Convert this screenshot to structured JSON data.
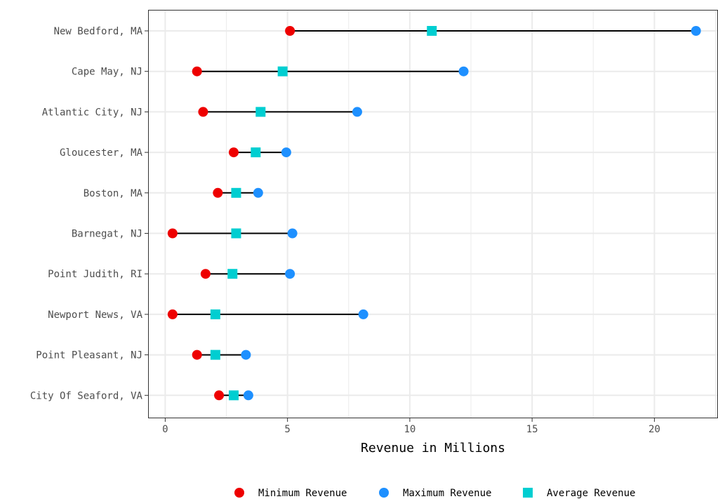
{
  "chart_data": {
    "type": "dumbbell",
    "title": "",
    "xlabel": "Revenue in Millions",
    "ylabel": "",
    "xlim": [
      -0.7,
      22.6
    ],
    "x_ticks": [
      0,
      5,
      10,
      15,
      20
    ],
    "grid": true,
    "legend_position": "bottom",
    "colors": {
      "min": "#ee0000",
      "max": "#1e90ff",
      "avg": "#00ced1",
      "segment": "#000000",
      "grid": "#ebebeb",
      "panel_border": "#333333"
    },
    "categories": [
      "New Bedford, MA",
      "Cape May, NJ",
      "Atlantic City, NJ",
      "Gloucester, MA",
      "Boston, MA",
      "Barnegat, NJ",
      "Point Judith, RI",
      "Newport News, VA",
      "Point Pleasant, NJ",
      "City Of Seaford, VA"
    ],
    "series": [
      {
        "name": "Minimum Revenue",
        "marker": "circle",
        "values": [
          5.1,
          1.3,
          1.55,
          2.8,
          2.15,
          0.3,
          1.65,
          0.3,
          1.3,
          2.2
        ]
      },
      {
        "name": "Maximum Revenue",
        "marker": "circle",
        "values": [
          21.7,
          12.2,
          7.85,
          4.95,
          3.8,
          5.2,
          5.1,
          8.1,
          3.3,
          3.4
        ]
      },
      {
        "name": "Average Revenue",
        "marker": "square",
        "values": [
          10.9,
          4.8,
          3.9,
          3.7,
          2.9,
          2.9,
          2.75,
          2.05,
          2.05,
          2.8
        ]
      }
    ]
  }
}
